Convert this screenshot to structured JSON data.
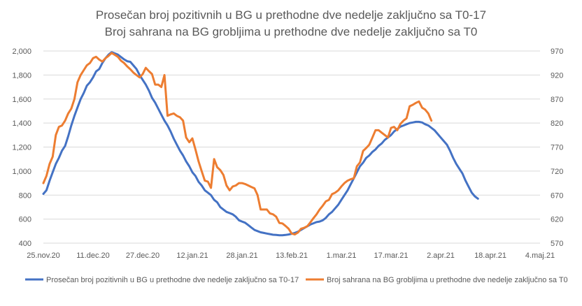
{
  "chart_data": {
    "type": "line",
    "title": "Prosečan broj pozitivnih u BG u prethodne dve nedelje zaključno sa T0-17",
    "subtitle": "Broj sahrana na BG grobljima u prethodne dve nedelje zaključno sa T0",
    "x_ticks": [
      "25.nov.20",
      "11.dec.20",
      "27.dec.20",
      "12.jan.21",
      "28.jan.21",
      "13.feb.21",
      "1.mar.21",
      "17.mar.21",
      "2.apr.21",
      "18.apr.21",
      "4.maj.21"
    ],
    "x_start": "2020-11-25",
    "y_left": {
      "min": 400,
      "max": 2000,
      "ticks": [
        "400",
        "600",
        "800",
        "1,000",
        "1,200",
        "1,400",
        "1,600",
        "1,800",
        "2,000"
      ]
    },
    "y_right": {
      "min": 570,
      "max": 970,
      "ticks": [
        "570",
        "620",
        "670",
        "720",
        "770",
        "820",
        "870",
        "920",
        "970"
      ]
    },
    "grid": true,
    "legend_position": "bottom",
    "series": [
      {
        "name": "Prosečan broj pozitivnih u BG u prethodne dve nedelje zaključno sa T0-17",
        "axis": "left",
        "color": "#4472c4",
        "points": [
          [
            0,
            810
          ],
          [
            1,
            840
          ],
          [
            2,
            920
          ],
          [
            3,
            990
          ],
          [
            4,
            1060
          ],
          [
            5,
            1110
          ],
          [
            6,
            1170
          ],
          [
            7,
            1210
          ],
          [
            8,
            1290
          ],
          [
            9,
            1380
          ],
          [
            10,
            1460
          ],
          [
            11,
            1530
          ],
          [
            12,
            1600
          ],
          [
            13,
            1650
          ],
          [
            14,
            1710
          ],
          [
            15,
            1740
          ],
          [
            16,
            1780
          ],
          [
            17,
            1830
          ],
          [
            18,
            1850
          ],
          [
            19,
            1900
          ],
          [
            20,
            1940
          ],
          [
            21,
            1970
          ],
          [
            22,
            1990
          ],
          [
            23,
            1980
          ],
          [
            24,
            1970
          ],
          [
            25,
            1950
          ],
          [
            26,
            1930
          ],
          [
            27,
            1915
          ],
          [
            28,
            1910
          ],
          [
            29,
            1880
          ],
          [
            30,
            1850
          ],
          [
            31,
            1800
          ],
          [
            32,
            1760
          ],
          [
            33,
            1720
          ],
          [
            34,
            1670
          ],
          [
            35,
            1610
          ],
          [
            36,
            1570
          ],
          [
            37,
            1520
          ],
          [
            38,
            1470
          ],
          [
            39,
            1420
          ],
          [
            40,
            1380
          ],
          [
            41,
            1330
          ],
          [
            42,
            1270
          ],
          [
            43,
            1220
          ],
          [
            44,
            1170
          ],
          [
            45,
            1130
          ],
          [
            46,
            1080
          ],
          [
            47,
            1040
          ],
          [
            48,
            990
          ],
          [
            49,
            960
          ],
          [
            50,
            910
          ],
          [
            51,
            880
          ],
          [
            52,
            840
          ],
          [
            53,
            820
          ],
          [
            54,
            800
          ],
          [
            55,
            760
          ],
          [
            56,
            740
          ],
          [
            57,
            700
          ],
          [
            58,
            680
          ],
          [
            59,
            660
          ],
          [
            60,
            650
          ],
          [
            61,
            640
          ],
          [
            62,
            620
          ],
          [
            63,
            590
          ],
          [
            64,
            580
          ],
          [
            65,
            570
          ],
          [
            66,
            550
          ],
          [
            67,
            530
          ],
          [
            68,
            510
          ],
          [
            69,
            500
          ],
          [
            70,
            490
          ],
          [
            71,
            485
          ],
          [
            72,
            480
          ],
          [
            73,
            475
          ],
          [
            74,
            470
          ],
          [
            75,
            468
          ],
          [
            76,
            465
          ],
          [
            77,
            465
          ],
          [
            78,
            468
          ],
          [
            79,
            472
          ],
          [
            80,
            478
          ],
          [
            81,
            485
          ],
          [
            82,
            495
          ],
          [
            83,
            510
          ],
          [
            84,
            525
          ],
          [
            85,
            540
          ],
          [
            86,
            555
          ],
          [
            87,
            565
          ],
          [
            88,
            575
          ],
          [
            89,
            580
          ],
          [
            90,
            590
          ],
          [
            91,
            610
          ],
          [
            92,
            640
          ],
          [
            93,
            660
          ],
          [
            94,
            690
          ],
          [
            95,
            720
          ],
          [
            96,
            760
          ],
          [
            97,
            800
          ],
          [
            98,
            840
          ],
          [
            99,
            890
          ],
          [
            100,
            940
          ],
          [
            101,
            990
          ],
          [
            102,
            1040
          ],
          [
            103,
            1070
          ],
          [
            104,
            1110
          ],
          [
            105,
            1130
          ],
          [
            106,
            1160
          ],
          [
            107,
            1180
          ],
          [
            108,
            1210
          ],
          [
            109,
            1230
          ],
          [
            110,
            1260
          ],
          [
            111,
            1280
          ],
          [
            112,
            1300
          ],
          [
            113,
            1330
          ],
          [
            114,
            1350
          ],
          [
            115,
            1370
          ],
          [
            116,
            1380
          ],
          [
            117,
            1390
          ],
          [
            118,
            1400
          ],
          [
            119,
            1405
          ],
          [
            120,
            1410
          ],
          [
            121,
            1410
          ],
          [
            122,
            1405
          ],
          [
            123,
            1390
          ],
          [
            124,
            1380
          ],
          [
            125,
            1360
          ],
          [
            126,
            1340
          ],
          [
            127,
            1310
          ],
          [
            128,
            1280
          ],
          [
            129,
            1250
          ],
          [
            130,
            1220
          ],
          [
            131,
            1170
          ],
          [
            132,
            1110
          ],
          [
            133,
            1060
          ],
          [
            134,
            1020
          ],
          [
            135,
            980
          ],
          [
            136,
            920
          ],
          [
            137,
            870
          ],
          [
            138,
            820
          ],
          [
            139,
            790
          ],
          [
            140,
            770
          ]
        ]
      },
      {
        "name": "Broj sahrana na BG grobljima u prethodne dve nedelje zaključno sa T0",
        "axis": "right",
        "color": "#ed7d31",
        "points": [
          [
            0,
            695
          ],
          [
            1,
            710
          ],
          [
            2,
            735
          ],
          [
            3,
            750
          ],
          [
            4,
            795
          ],
          [
            5,
            812
          ],
          [
            6,
            815
          ],
          [
            7,
            825
          ],
          [
            8,
            840
          ],
          [
            9,
            850
          ],
          [
            10,
            870
          ],
          [
            11,
            905
          ],
          [
            12,
            920
          ],
          [
            13,
            930
          ],
          [
            14,
            940
          ],
          [
            15,
            945
          ],
          [
            16,
            955
          ],
          [
            17,
            958
          ],
          [
            18,
            952
          ],
          [
            19,
            948
          ],
          [
            20,
            955
          ],
          [
            21,
            960
          ],
          [
            22,
            966
          ],
          [
            23,
            962
          ],
          [
            24,
            958
          ],
          [
            25,
            950
          ],
          [
            26,
            945
          ],
          [
            27,
            938
          ],
          [
            28,
            932
          ],
          [
            29,
            925
          ],
          [
            30,
            920
          ],
          [
            31,
            915
          ],
          [
            32,
            922
          ],
          [
            33,
            935
          ],
          [
            34,
            928
          ],
          [
            35,
            922
          ],
          [
            36,
            900
          ],
          [
            37,
            900
          ],
          [
            38,
            895
          ],
          [
            39,
            920
          ],
          [
            40,
            835
          ],
          [
            41,
            838
          ],
          [
            42,
            840
          ],
          [
            43,
            835
          ],
          [
            44,
            832
          ],
          [
            45,
            825
          ],
          [
            46,
            790
          ],
          [
            47,
            780
          ],
          [
            48,
            788
          ],
          [
            49,
            765
          ],
          [
            50,
            740
          ],
          [
            51,
            720
          ],
          [
            52,
            700
          ],
          [
            53,
            698
          ],
          [
            54,
            685
          ],
          [
            55,
            745
          ],
          [
            56,
            728
          ],
          [
            57,
            722
          ],
          [
            58,
            712
          ],
          [
            59,
            690
          ],
          [
            60,
            680
          ],
          [
            61,
            688
          ],
          [
            62,
            690
          ],
          [
            63,
            695
          ],
          [
            64,
            695
          ],
          [
            65,
            693
          ],
          [
            66,
            690
          ],
          [
            67,
            687
          ],
          [
            68,
            684
          ],
          [
            69,
            670
          ],
          [
            70,
            640
          ],
          [
            71,
            640
          ],
          [
            72,
            640
          ],
          [
            73,
            632
          ],
          [
            74,
            630
          ],
          [
            75,
            625
          ],
          [
            76,
            612
          ],
          [
            77,
            611
          ],
          [
            78,
            606
          ],
          [
            79,
            600
          ],
          [
            80,
            590
          ],
          [
            81,
            588
          ],
          [
            82,
            592
          ],
          [
            83,
            600
          ],
          [
            84,
            602
          ],
          [
            85,
            605
          ],
          [
            86,
            613
          ],
          [
            87,
            622
          ],
          [
            88,
            630
          ],
          [
            89,
            640
          ],
          [
            90,
            648
          ],
          [
            91,
            657
          ],
          [
            92,
            660
          ],
          [
            93,
            672
          ],
          [
            94,
            675
          ],
          [
            95,
            680
          ],
          [
            96,
            688
          ],
          [
            97,
            695
          ],
          [
            98,
            700
          ],
          [
            99,
            703
          ],
          [
            100,
            705
          ],
          [
            101,
            730
          ],
          [
            102,
            738
          ],
          [
            103,
            762
          ],
          [
            104,
            768
          ],
          [
            105,
            775
          ],
          [
            106,
            790
          ],
          [
            107,
            805
          ],
          [
            108,
            805
          ],
          [
            109,
            800
          ],
          [
            110,
            795
          ],
          [
            111,
            790
          ],
          [
            112,
            810
          ],
          [
            113,
            812
          ],
          [
            114,
            805
          ],
          [
            115,
            818
          ],
          [
            116,
            825
          ],
          [
            117,
            830
          ],
          [
            118,
            855
          ],
          [
            119,
            858
          ],
          [
            120,
            862
          ],
          [
            121,
            865
          ],
          [
            122,
            852
          ],
          [
            123,
            848
          ],
          [
            124,
            840
          ],
          [
            125,
            825
          ]
        ]
      }
    ]
  }
}
